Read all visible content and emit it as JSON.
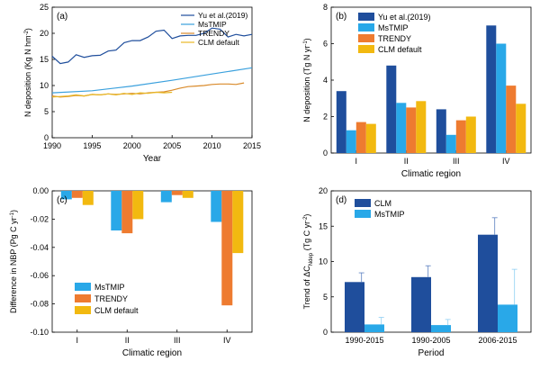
{
  "chart_data": [
    {
      "panel": "(a)",
      "type": "line",
      "xlabel": "Year",
      "ylabel": "N deposition (Kg N hm⁻²)",
      "xlim": [
        1990,
        2015
      ],
      "ylim": [
        0,
        25
      ],
      "xticks": [
        1990,
        1995,
        2000,
        2005,
        2010,
        2015
      ],
      "yticks": [
        0,
        5,
        10,
        15,
        20,
        25
      ],
      "legend_position": "top-right",
      "series": [
        {
          "name": "Yu et al.(2019)",
          "color": "#1f4e9c",
          "x": [
            1990,
            1991,
            1992,
            1993,
            1994,
            1995,
            1996,
            1997,
            1998,
            1999,
            2000,
            2001,
            2002,
            2003,
            2004,
            2005,
            2006,
            2007,
            2008,
            2009,
            2010,
            2011,
            2012,
            2013,
            2014,
            2015
          ],
          "y": [
            15.6,
            14.2,
            14.5,
            15.9,
            15.4,
            15.7,
            15.8,
            16.6,
            16.8,
            18.2,
            18.6,
            18.6,
            19.3,
            20.4,
            20.6,
            19.0,
            19.5,
            19.6,
            19.6,
            20.0,
            21.0,
            20.8,
            19.3,
            19.8,
            19.5,
            19.8
          ]
        },
        {
          "name": "MsTMIP",
          "color": "#3aa0dd",
          "x": [
            1990,
            1995,
            2000,
            2005,
            2010,
            2015
          ],
          "y": [
            8.6,
            9.0,
            9.9,
            11.0,
            12.2,
            13.4
          ]
        },
        {
          "name": "TRENDY",
          "color": "#d98a2a",
          "x": [
            1990,
            1991,
            1992,
            1993,
            1994,
            1995,
            1996,
            1997,
            1998,
            1999,
            2000,
            2001,
            2002,
            2003,
            2004,
            2005,
            2006,
            2007,
            2008,
            2009,
            2010,
            2011,
            2012,
            2013,
            2014
          ],
          "y": [
            8.0,
            7.8,
            7.9,
            8.1,
            8.0,
            8.3,
            8.2,
            8.4,
            8.3,
            8.4,
            8.5,
            8.4,
            8.6,
            8.7,
            8.8,
            9.1,
            9.5,
            9.8,
            9.9,
            10.0,
            10.2,
            10.3,
            10.3,
            10.2,
            10.5
          ]
        },
        {
          "name": "CLM default",
          "color": "#e8b825",
          "x": [
            1990,
            1991,
            1992,
            1993,
            1994,
            1995,
            1996,
            1997,
            1998,
            1999,
            2000,
            2001,
            2002,
            2003,
            2004,
            2005
          ],
          "y": [
            7.8,
            7.9,
            8.0,
            8.2,
            8.0,
            8.3,
            8.2,
            8.4,
            8.2,
            8.5,
            8.3,
            8.6,
            8.5,
            8.7,
            8.6,
            8.7
          ]
        }
      ]
    },
    {
      "panel": "(b)",
      "type": "bar",
      "xlabel": "Climatic region",
      "ylabel": "N deposition (Tg N yr⁻¹)",
      "categories": [
        "I",
        "II",
        "III",
        "IV"
      ],
      "ylim": [
        0,
        8
      ],
      "yticks": [
        0,
        2,
        4,
        6,
        8
      ],
      "legend_position": "top-left",
      "series": [
        {
          "name": "Yu et al.(2019)",
          "color": "#1f4e9c",
          "values": [
            3.4,
            4.8,
            2.4,
            7.0
          ]
        },
        {
          "name": "MsTMIP",
          "color": "#29a8e8",
          "values": [
            1.25,
            2.75,
            1.0,
            6.0
          ]
        },
        {
          "name": "TRENDY",
          "color": "#ee7b30",
          "values": [
            1.7,
            2.5,
            1.8,
            3.7
          ]
        },
        {
          "name": "CLM default",
          "color": "#f2b910",
          "values": [
            1.6,
            2.85,
            2.0,
            2.7
          ]
        }
      ]
    },
    {
      "panel": "(c)",
      "type": "bar",
      "xlabel": "Climatic region",
      "ylabel": "Difference in NBP (Pg C yr⁻¹)",
      "categories": [
        "I",
        "II",
        "III",
        "IV"
      ],
      "ylim": [
        -0.1,
        0.0
      ],
      "yticks": [
        0.0,
        -0.02,
        -0.04,
        -0.06,
        -0.08,
        -0.1
      ],
      "ytick_labels": [
        "0.00",
        "-0.02",
        "-0.04",
        "-0.06",
        "-0.08",
        "-0.10"
      ],
      "legend_position": "bottom-left",
      "series": [
        {
          "name": "MsTMIP",
          "color": "#29a8e8",
          "values": [
            -0.006,
            -0.028,
            -0.008,
            -0.022
          ]
        },
        {
          "name": "TRENDY",
          "color": "#ee7b30",
          "values": [
            -0.005,
            -0.03,
            -0.003,
            -0.081
          ]
        },
        {
          "name": "CLM default",
          "color": "#f2b910",
          "values": [
            -0.01,
            -0.02,
            -0.005,
            -0.044
          ]
        }
      ]
    },
    {
      "panel": "(d)",
      "type": "bar",
      "xlabel": "Period",
      "ylabel": "Trend of ΔC_Ndep (Tg C yr⁻²)",
      "categories": [
        "1990-2015",
        "1990-2005",
        "2006-2015"
      ],
      "ylim": [
        0,
        20
      ],
      "yticks": [
        0,
        5,
        10,
        15,
        20
      ],
      "legend_position": "top-left",
      "series": [
        {
          "name": "CLM",
          "color": "#1f4e9c",
          "values": [
            7.1,
            7.8,
            13.8
          ],
          "error": [
            1.3,
            1.6,
            2.4
          ]
        },
        {
          "name": "MsTMIP",
          "color": "#29a8e8",
          "values": [
            1.1,
            1.0,
            3.9
          ],
          "error": [
            1.0,
            0.8,
            5.0
          ]
        }
      ]
    }
  ]
}
